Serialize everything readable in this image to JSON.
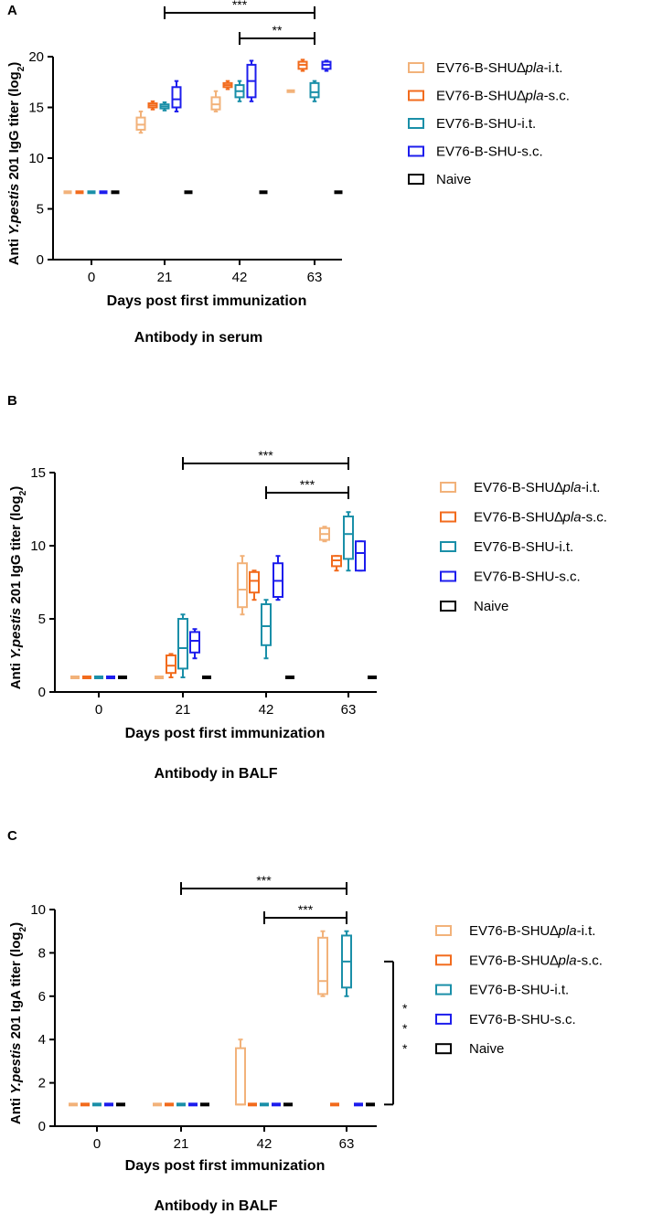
{
  "colors": {
    "EV76-B-SHU∆pla-i.t.": "#f2b27a",
    "EV76-B-SHU∆pla-s.c.": "#f26b1d",
    "EV76-B-SHU-i.t.": "#1a8fa8",
    "EV76-B-SHU-s.c.": "#1d1ded",
    "Naive": "#000000"
  },
  "legend_items": [
    {
      "key": "EV76-B-SHU∆pla-i.t.",
      "prefix": "EV76-B-SHU∆",
      "italic": "pla",
      "suffix": "-i.t."
    },
    {
      "key": "EV76-B-SHU∆pla-s.c.",
      "prefix": "EV76-B-SHU∆",
      "italic": "pla",
      "suffix": "-s.c."
    },
    {
      "key": "EV76-B-SHU-i.t.",
      "prefix": "EV76-B-SHU-i.t.",
      "italic": "",
      "suffix": ""
    },
    {
      "key": "EV76-B-SHU-s.c.",
      "prefix": "EV76-B-SHU-s.c.",
      "italic": "",
      "suffix": ""
    },
    {
      "key": "Naive",
      "prefix": "Naive",
      "italic": "",
      "suffix": ""
    }
  ],
  "chart_data": [
    {
      "panel": "A",
      "type": "box",
      "title": "Antibody in serum",
      "xlabel": "Days post first immunization",
      "ylabel": {
        "pre": "Anti ",
        "italic": "Y.pestis",
        "mid": " 201 IgG titer (log",
        "sub": "2",
        "post": ")"
      },
      "categories": [
        "0",
        "21",
        "42",
        "63"
      ],
      "ylim": [
        0,
        20
      ],
      "yticks": [
        0,
        5,
        10,
        15,
        20
      ],
      "series": [
        {
          "name": "EV76-B-SHU∆pla-i.t.",
          "boxes": [
            [
              6.64,
              6.64,
              6.64,
              6.64,
              6.64
            ],
            [
              12.5,
              12.8,
              13.3,
              14.0,
              14.6
            ],
            [
              14.6,
              14.8,
              15.3,
              16.0,
              16.6
            ],
            [
              16.6,
              16.6,
              16.6,
              16.6,
              16.6
            ]
          ]
        },
        {
          "name": "EV76-B-SHU∆pla-s.c.",
          "boxes": [
            [
              6.64,
              6.64,
              6.64,
              6.64,
              6.64
            ],
            [
              14.8,
              15.0,
              15.2,
              15.4,
              15.6
            ],
            [
              16.8,
              17.0,
              17.2,
              17.4,
              17.6
            ],
            [
              18.6,
              18.8,
              19.2,
              19.5,
              19.7
            ]
          ]
        },
        {
          "name": "EV76-B-SHU-i.t.",
          "boxes": [
            [
              6.64,
              6.64,
              6.64,
              6.64,
              6.64
            ],
            [
              14.7,
              14.9,
              15.1,
              15.3,
              15.5
            ],
            [
              15.6,
              16.0,
              16.6,
              17.2,
              17.6
            ],
            [
              15.6,
              16.0,
              16.5,
              17.4,
              17.6
            ]
          ]
        },
        {
          "name": "EV76-B-SHU-s.c.",
          "boxes": [
            [
              6.64,
              6.64,
              6.64,
              6.64,
              6.64
            ],
            [
              14.6,
              15.0,
              15.8,
              17.0,
              17.6
            ],
            [
              15.6,
              16.0,
              17.6,
              19.2,
              19.6
            ],
            [
              18.6,
              18.8,
              19.2,
              19.5,
              19.6
            ]
          ]
        },
        {
          "name": "Naive",
          "boxes": [
            [
              6.64,
              6.64,
              6.64,
              6.64,
              6.64
            ],
            [
              6.64,
              6.64,
              6.64,
              6.64,
              6.64
            ],
            [
              6.64,
              6.64,
              6.64,
              6.64,
              6.64
            ],
            [
              6.64,
              6.64,
              6.64,
              6.64,
              6.64
            ]
          ]
        }
      ],
      "significance": [
        {
          "from": "21",
          "to": "63",
          "label": "***"
        },
        {
          "from": "42",
          "to": "63",
          "label": "**"
        }
      ]
    },
    {
      "panel": "B",
      "type": "box",
      "title": "Antibody in BALF",
      "xlabel": "Days post first immunization",
      "ylabel": {
        "pre": "Anti ",
        "italic": "Y.pestis",
        "mid": "  201 IgG titer (log",
        "sub": "2",
        "post": ")"
      },
      "categories": [
        "0",
        "21",
        "42",
        "63"
      ],
      "ylim": [
        0,
        15
      ],
      "yticks": [
        0,
        5,
        10,
        15
      ],
      "series": [
        {
          "name": "EV76-B-SHU∆pla-i.t.",
          "boxes": [
            [
              1,
              1,
              1,
              1,
              1
            ],
            [
              1,
              1,
              1,
              1,
              1
            ],
            [
              5.3,
              5.8,
              7.0,
              8.8,
              9.3
            ],
            [
              10.3,
              10.4,
              10.8,
              11.2,
              11.3
            ]
          ]
        },
        {
          "name": "EV76-B-SHU∆pla-s.c.",
          "boxes": [
            [
              1,
              1,
              1,
              1,
              1
            ],
            [
              1.0,
              1.3,
              1.8,
              2.5,
              2.6
            ],
            [
              6.3,
              6.8,
              7.6,
              8.2,
              8.3
            ],
            [
              8.3,
              8.6,
              9.0,
              9.3,
              9.3
            ]
          ]
        },
        {
          "name": "EV76-B-SHU-i.t.",
          "boxes": [
            [
              1,
              1,
              1,
              1,
              1
            ],
            [
              1.0,
              1.6,
              3.0,
              5.0,
              5.3
            ],
            [
              2.3,
              3.2,
              4.5,
              6.0,
              6.3
            ],
            [
              8.3,
              9.1,
              10.8,
              12.0,
              12.3
            ]
          ]
        },
        {
          "name": "EV76-B-SHU-s.c.",
          "boxes": [
            [
              1,
              1,
              1,
              1,
              1
            ],
            [
              2.3,
              2.7,
              3.5,
              4.1,
              4.3
            ],
            [
              6.3,
              6.5,
              7.6,
              8.8,
              9.3
            ],
            [
              8.3,
              8.3,
              9.5,
              10.3,
              10.3
            ]
          ]
        },
        {
          "name": "Naive",
          "boxes": [
            [
              1,
              1,
              1,
              1,
              1
            ],
            [
              1,
              1,
              1,
              1,
              1
            ],
            [
              1,
              1,
              1,
              1,
              1
            ],
            [
              1,
              1,
              1,
              1,
              1
            ]
          ]
        }
      ],
      "significance": [
        {
          "from": "21",
          "to": "63",
          "label": "***"
        },
        {
          "from": "42",
          "to": "63",
          "label": "***"
        }
      ]
    },
    {
      "panel": "C",
      "type": "box",
      "title": "Antibody in BALF",
      "xlabel": "Days post first immunization",
      "ylabel": {
        "pre": "Anti ",
        "italic": "Y.pestis",
        "mid": "  201 IgA titer (log",
        "sub": "2",
        "post": ")"
      },
      "categories": [
        "0",
        "21",
        "42",
        "63"
      ],
      "ylim": [
        0,
        10
      ],
      "yticks": [
        0,
        2,
        4,
        6,
        8,
        10
      ],
      "series": [
        {
          "name": "EV76-B-SHU∆pla-i.t.",
          "boxes": [
            [
              1,
              1,
              1,
              1,
              1
            ],
            [
              1,
              1,
              1,
              1,
              1
            ],
            [
              1.0,
              1.0,
              1.0,
              3.6,
              4.0
            ],
            [
              6.0,
              6.1,
              6.7,
              8.7,
              9.0
            ]
          ]
        },
        {
          "name": "EV76-B-SHU∆pla-s.c.",
          "boxes": [
            [
              1,
              1,
              1,
              1,
              1
            ],
            [
              1,
              1,
              1,
              1,
              1
            ],
            [
              1,
              1,
              1,
              1,
              1
            ],
            [
              1,
              1,
              1,
              1,
              1
            ]
          ]
        },
        {
          "name": "EV76-B-SHU-i.t.",
          "boxes": [
            [
              1,
              1,
              1,
              1,
              1
            ],
            [
              1,
              1,
              1,
              1,
              1
            ],
            [
              1,
              1,
              1,
              1,
              1
            ],
            [
              6.0,
              6.4,
              7.6,
              8.8,
              9.0
            ]
          ]
        },
        {
          "name": "EV76-B-SHU-s.c.",
          "boxes": [
            [
              1,
              1,
              1,
              1,
              1
            ],
            [
              1,
              1,
              1,
              1,
              1
            ],
            [
              1,
              1,
              1,
              1,
              1
            ],
            [
              1,
              1,
              1,
              1,
              1
            ]
          ]
        },
        {
          "name": "Naive",
          "boxes": [
            [
              1,
              1,
              1,
              1,
              1
            ],
            [
              1,
              1,
              1,
              1,
              1
            ],
            [
              1,
              1,
              1,
              1,
              1
            ],
            [
              1,
              1,
              1,
              1,
              1
            ]
          ]
        }
      ],
      "significance": [
        {
          "from": "21",
          "to": "63",
          "label": "***"
        },
        {
          "from": "42",
          "to": "63",
          "label": "***"
        }
      ],
      "vertical_significance": {
        "from": 7.6,
        "to": 1.0,
        "label": "***"
      }
    }
  ]
}
